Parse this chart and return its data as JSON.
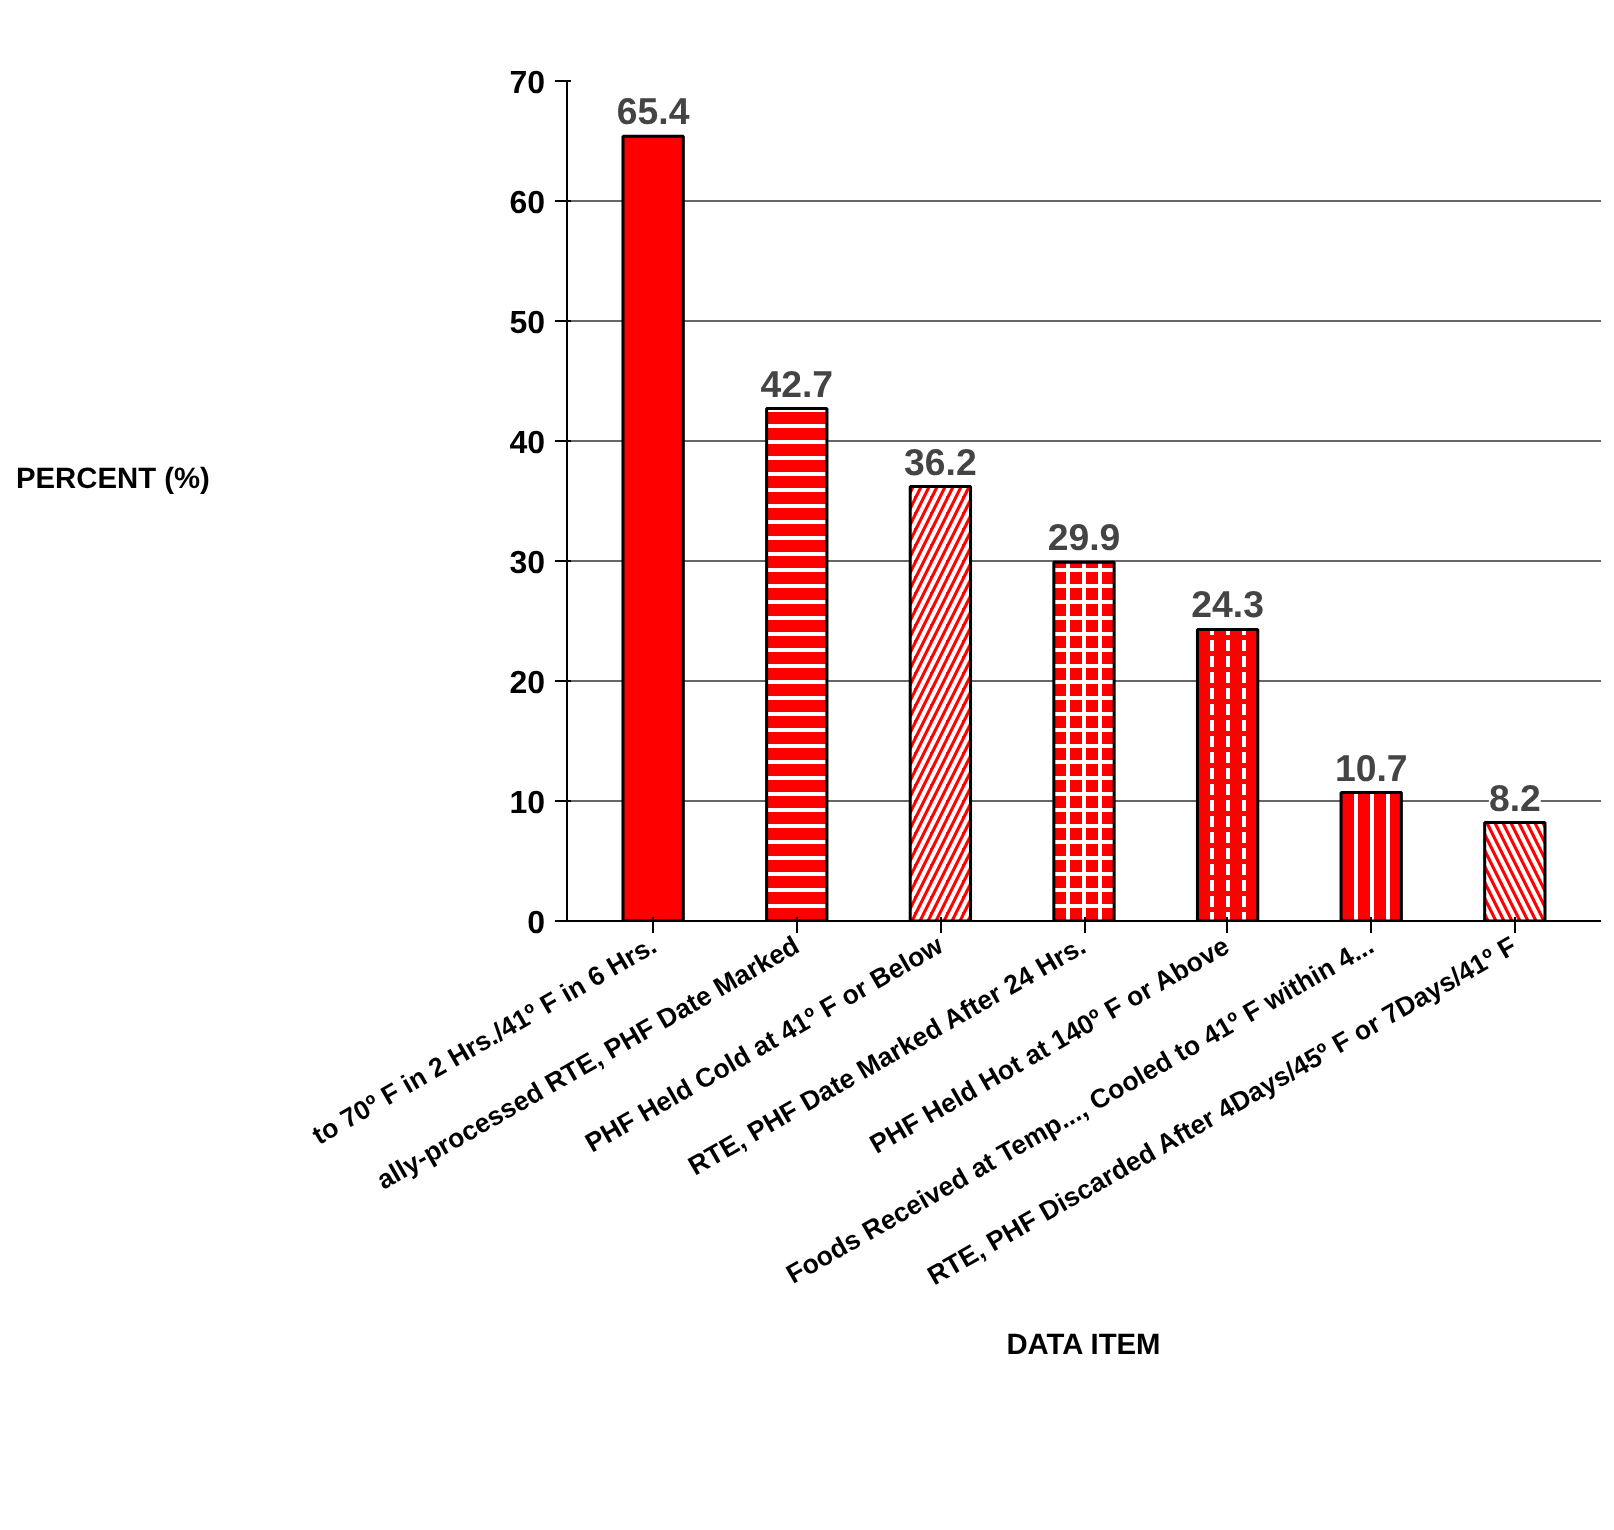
{
  "chart_data": {
    "type": "bar",
    "xlabel": "DATA ITEM",
    "ylabel": "PERCENT (%)",
    "categories": [
      "to 70º F in 2 Hrs./41º F in 6 Hrs.",
      "ally-processed RTE, PHF Date Marked",
      "PHF Held Cold at 41º F or Below",
      "RTE, PHF Date Marked After 24 Hrs.",
      "PHF Held Hot at 140º F or Above",
      "Foods Received at Temp..., Cooled to 41º F within 4...",
      "RTE, PHF Discarded After 4Days/45º F or 7Days/41º F"
    ],
    "values": [
      65.4,
      42.7,
      36.2,
      29.9,
      24.3,
      10.7,
      8.2
    ],
    "colors": [
      "#ff0000",
      "#ff0000",
      "#ff0000",
      "#ff0000",
      "#ff0000",
      "#ff0000",
      "#ff0000"
    ],
    "ylim": [
      0,
      70
    ],
    "yticks": [
      0,
      10,
      20,
      30,
      40,
      50,
      60,
      70
    ],
    "grid": "y",
    "data_labels": true
  }
}
